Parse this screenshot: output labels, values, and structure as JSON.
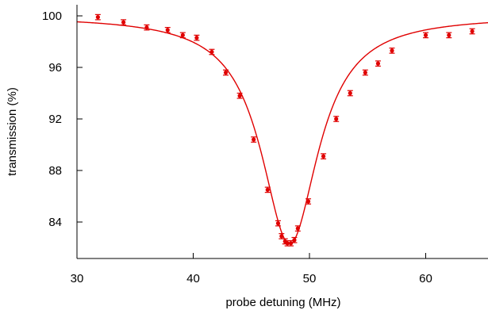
{
  "chart_data": {
    "type": "scatter",
    "title": "",
    "xlabel": "probe detuning (MHz)",
    "ylabel": "transmission (%)",
    "xlim": [
      30,
      66
    ],
    "ylim": [
      81.5,
      101
    ],
    "xticks": [
      30,
      40,
      50,
      60
    ],
    "yticks": [
      84,
      88,
      92,
      96,
      100
    ],
    "xtick_labels": [
      "30",
      "40",
      "50",
      "60"
    ],
    "ytick_labels": [
      "84",
      "88",
      "92",
      "96",
      "100"
    ],
    "grid": false,
    "legend": "none",
    "color": "#e00000",
    "series": [
      {
        "kind": "points_with_error_bars",
        "x": [
          31.8,
          34.0,
          36.0,
          37.8,
          39.1,
          40.3,
          41.6,
          42.8,
          44.0,
          45.2,
          46.4,
          47.3,
          47.6,
          47.9,
          48.1,
          48.4,
          48.7,
          49.0,
          49.9,
          51.2,
          52.3,
          53.5,
          54.8,
          55.9,
          57.1,
          60.0,
          62.0,
          64.0
        ],
        "y": [
          99.9,
          99.5,
          99.1,
          98.9,
          98.5,
          98.3,
          97.2,
          95.6,
          93.8,
          90.4,
          86.5,
          83.9,
          82.9,
          82.5,
          82.35,
          82.35,
          82.6,
          83.5,
          85.6,
          89.1,
          92.0,
          94.0,
          95.6,
          96.3,
          97.3,
          98.5,
          98.5,
          98.8
        ],
        "yerr": [
          0.2,
          0.2,
          0.2,
          0.2,
          0.2,
          0.2,
          0.2,
          0.2,
          0.2,
          0.2,
          0.2,
          0.2,
          0.2,
          0.2,
          0.2,
          0.2,
          0.2,
          0.2,
          0.2,
          0.2,
          0.2,
          0.2,
          0.2,
          0.2,
          0.2,
          0.2,
          0.2,
          0.2
        ]
      },
      {
        "kind": "fit_curve",
        "model": "lorentzian_dip",
        "baseline": 100,
        "center": 48.3,
        "hwhm": 3.0,
        "depth": 17.7,
        "x_range": [
          30,
          66
        ]
      }
    ]
  }
}
